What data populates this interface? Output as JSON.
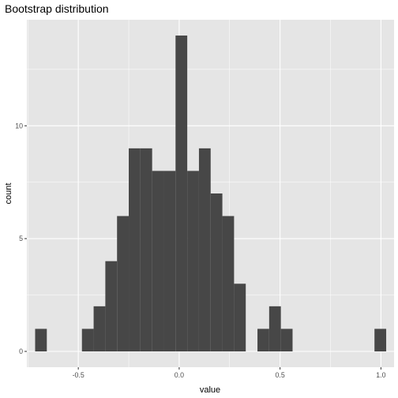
{
  "chart_data": {
    "type": "bar",
    "title": "Bootstrap distribution",
    "xlabel": "value",
    "ylabel": "count",
    "xlim": [
      -0.755,
      1.065
    ],
    "ylim": [
      -0.7,
      14.7
    ],
    "x_ticks": [
      -0.5,
      0.0,
      0.5,
      1.0
    ],
    "x_tick_labels": [
      "-0.5",
      "0.0",
      "0.5",
      "1.0"
    ],
    "y_ticks": [
      0,
      5,
      10
    ],
    "y_tick_labels": [
      "0",
      "5",
      "10"
    ],
    "bin_width": 0.058,
    "bins": [
      {
        "x": -0.685,
        "count": 1
      },
      {
        "x": -0.627,
        "count": 0
      },
      {
        "x": -0.569,
        "count": 0
      },
      {
        "x": -0.511,
        "count": 0
      },
      {
        "x": -0.453,
        "count": 1
      },
      {
        "x": -0.395,
        "count": 2
      },
      {
        "x": -0.337,
        "count": 4
      },
      {
        "x": -0.279,
        "count": 6
      },
      {
        "x": -0.221,
        "count": 9
      },
      {
        "x": -0.163,
        "count": 9
      },
      {
        "x": -0.105,
        "count": 8
      },
      {
        "x": -0.047,
        "count": 8
      },
      {
        "x": 0.011,
        "count": 14
      },
      {
        "x": 0.069,
        "count": 8
      },
      {
        "x": 0.127,
        "count": 9
      },
      {
        "x": 0.185,
        "count": 7
      },
      {
        "x": 0.243,
        "count": 6
      },
      {
        "x": 0.301,
        "count": 3
      },
      {
        "x": 0.359,
        "count": 0
      },
      {
        "x": 0.417,
        "count": 1
      },
      {
        "x": 0.475,
        "count": 2
      },
      {
        "x": 0.533,
        "count": 1
      },
      {
        "x": 0.591,
        "count": 0
      },
      {
        "x": 0.649,
        "count": 0
      },
      {
        "x": 0.707,
        "count": 0
      },
      {
        "x": 0.765,
        "count": 0
      },
      {
        "x": 0.823,
        "count": 0
      },
      {
        "x": 0.881,
        "count": 0
      },
      {
        "x": 0.939,
        "count": 0
      },
      {
        "x": 0.997,
        "count": 1
      }
    ],
    "grid": true,
    "colors": {
      "panel": "#e5e5e5",
      "grid_major": "#ffffff",
      "bar_fill": "#474747"
    }
  }
}
